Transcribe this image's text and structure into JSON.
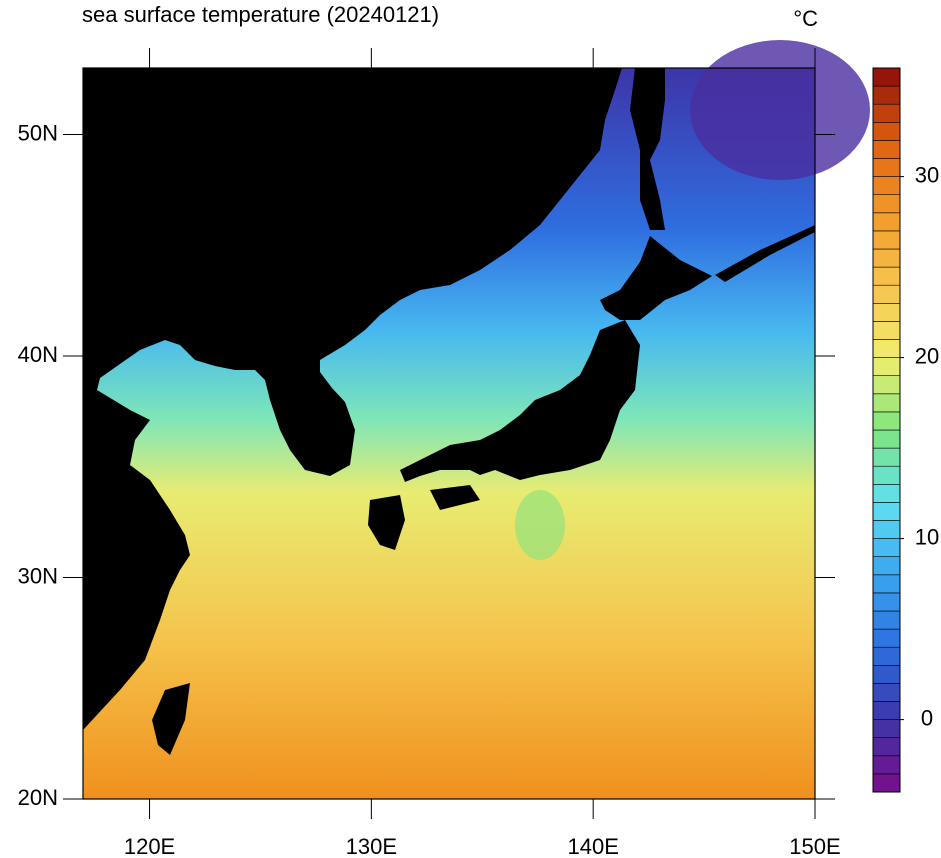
{
  "map": {
    "title": "sea surface temperature (20240121)",
    "unit": "°C",
    "xlim": [
      117,
      150
    ],
    "ylim": [
      20,
      53
    ],
    "xticks": [
      {
        "value": 120,
        "label": "120E"
      },
      {
        "value": 130,
        "label": "130E"
      },
      {
        "value": 140,
        "label": "140E"
      },
      {
        "value": 150,
        "label": "150E"
      }
    ],
    "yticks": [
      {
        "value": 20,
        "label": "20N"
      },
      {
        "value": 30,
        "label": "30N"
      },
      {
        "value": 40,
        "label": "40N"
      },
      {
        "value": 50,
        "label": "50N"
      }
    ],
    "colorbar": {
      "lim": [
        -4,
        36
      ],
      "ticks": [
        0,
        10,
        20,
        30
      ],
      "colors": [
        "#7a0d8a",
        "#3d35a8",
        "#2c6fe0",
        "#3aa5f0",
        "#5ee0f0",
        "#7ee67e",
        "#f2ee6e",
        "#f5c44c",
        "#f29a2a",
        "#e06010",
        "#8a0a0a"
      ]
    }
  }
}
